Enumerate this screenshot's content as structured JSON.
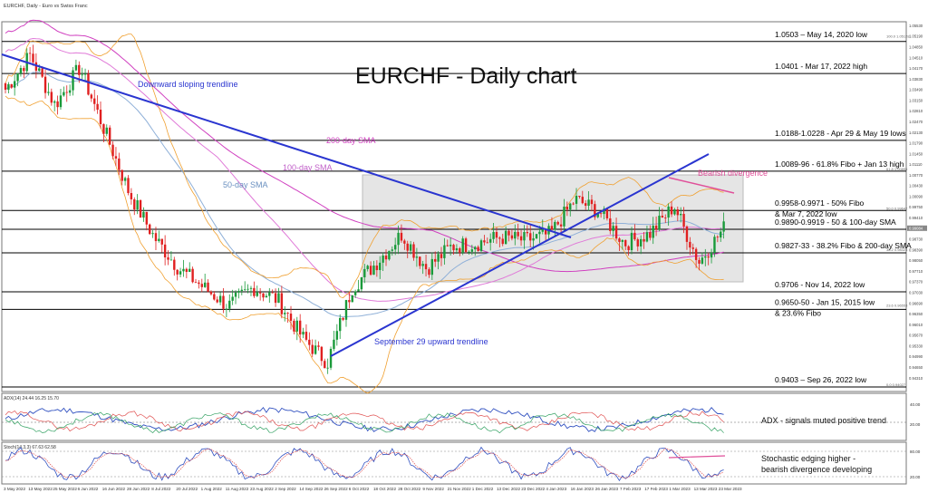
{
  "header": {
    "symbol_caption": "EURCHF, Daily - Euro vs Swiss Franc",
    "main_title": "EURCHF - Daily chart"
  },
  "colors": {
    "background": "#ffffff",
    "candle_up": "#1a9a3a",
    "candle_down": "#e02020",
    "trendline": "#2a35d0",
    "sma_200": "#d040c0",
    "sma_100": "#e07ad8",
    "sma_50": "#8fb0d8",
    "bollinger": "#f0a030",
    "range_box": "#d0d0d0",
    "divergence": "#e0509a",
    "adx_line": "#3050c0",
    "plus_di": "#e05050",
    "minus_di": "#30a060",
    "stoch_k": "#3050c0",
    "stoch_d": "#e05050",
    "level_line": "#000000",
    "annotation_text": "#000000"
  },
  "levels": [
    {
      "price": 1.0503,
      "label": "1.0503 – May 14, 2020 low"
    },
    {
      "price": 1.0401,
      "label": "1.0401 - Mar 17, 2022 high"
    },
    {
      "price": 1.0188,
      "label": "1.0188-1.0228 - Apr 29 & May 19 lows"
    },
    {
      "price": 1.009,
      "label": "1.0089-96 - 61.8% Fibo + Jan 13 high"
    },
    {
      "price": 0.9965,
      "label": "0.9958-0.9971 - 50% Fibo",
      "label2": "& Mar 7, 2022 low"
    },
    {
      "price": 0.9905,
      "label": "0.9890-0.9919 - 50 & 100-day SMA"
    },
    {
      "price": 0.983,
      "label": "0.9827-33 - 38.2% Fibo & 200-day SMA"
    },
    {
      "price": 0.9706,
      "label": "0.9706 - Nov 14, 2022 low"
    },
    {
      "price": 0.965,
      "label": "0.9650-50 - Jan 15, 2015 low",
      "label2": "& 23.6% Fibo"
    },
    {
      "price": 0.9403,
      "label": "0.9403 – Sep 26, 2022 low"
    }
  ],
  "annotations": {
    "downward_trendline": "Downward sloping trendline",
    "upward_trendline": "September 29 upward trendline",
    "sma_200": "200-day SMA",
    "sma_100": "100-day SMA",
    "sma_50": "50-day SMA",
    "bearish_divergence": "Bearish divergence"
  },
  "adx_panel": {
    "caption": "ADX(14) 24.44 16.25 15.70",
    "note": "ADX - signals muted positive trend",
    "axis_labels": [
      "40.00",
      "20.00"
    ]
  },
  "stoch_panel": {
    "caption": "Stoch(14,3,3) 67.63 62.58",
    "note1": "Stochastic edging higher -",
    "note2": "bearish divergence developing",
    "axis_labels": [
      "80.00",
      "20.00"
    ]
  },
  "price_axis": {
    "ticks": [
      "1.05530",
      "1.05190",
      "1.04850",
      "1.04510",
      "1.04170",
      "1.03830",
      "1.03490",
      "1.03150",
      "1.02810",
      "1.02470",
      "1.02130",
      "1.01790",
      "1.01450",
      "1.01110",
      "1.00770",
      "1.00430",
      "1.00090",
      "0.99750",
      "0.99410",
      "0.99070",
      "0.98730",
      "0.98390",
      "0.98050",
      "0.97710",
      "0.97370",
      "0.97030",
      "0.96690",
      "0.96350",
      "0.96010",
      "0.95670",
      "0.95330",
      "0.94990",
      "0.94650",
      "0.94310"
    ],
    "current_price": "0.99084"
  },
  "fibo_labels": [
    "100.0 1.05128",
    "61.8 1.00896",
    "50.0 0.99642",
    "38.2 0.98323",
    "23.6 0.96553",
    "0.0 0.94027"
  ],
  "date_axis": [
    "3 May 2022",
    "13 May 2022",
    "25 May 2022",
    "6 Jun 2022",
    "16 Jun 2022",
    "28 Jun 2022",
    "8 Jul 2022",
    "20 Jul 2022",
    "1 Aug 2022",
    "11 Aug 2022",
    "23 Aug 2022",
    "2 Sep 2022",
    "14 Sep 2022",
    "26 Sep 2022",
    "6 Oct 2022",
    "18 Oct 2022",
    "28 Oct 2022",
    "9 Nov 2022",
    "21 Nov 2022",
    "1 Dec 2022",
    "13 Dec 2022",
    "23 Dec 2022",
    "4 Jan 2023",
    "16 Jan 2023",
    "26 Jan 2023",
    "7 Feb 2023",
    "17 Feb 2023",
    "1 Mar 2023",
    "13 Mar 2023",
    "23 Mar 2023"
  ],
  "chart_data": {
    "type": "candlestick",
    "title": "EURCHF - Daily chart",
    "subtitle": "EURCHF, Daily - Euro vs Swiss Franc",
    "ylim": [
      0.94,
      1.056
    ],
    "price_path_x": [
      "3 May 2022",
      "13 May 2022",
      "25 May 2022",
      "6 Jun 2022",
      "16 Jun 2022",
      "28 Jun 2022",
      "8 Jul 2022",
      "20 Jul 2022",
      "1 Aug 2022",
      "11 Aug 2022",
      "23 Aug 2022",
      "2 Sep 2022",
      "14 Sep 2022",
      "26 Sep 2022",
      "6 Oct 2022",
      "18 Oct 2022",
      "28 Oct 2022",
      "9 Nov 2022",
      "21 Nov 2022",
      "1 Dec 2022",
      "13 Dec 2022",
      "23 Dec 2022",
      "4 Jan 2023",
      "16 Jan 2023",
      "26 Jan 2023",
      "7 Feb 2023",
      "17 Feb 2023",
      "1 Mar 2023",
      "13 Mar 2023",
      "23 Mar 2023"
    ],
    "price_path_close": [
      1.035,
      1.046,
      1.03,
      1.042,
      1.022,
      1.002,
      0.988,
      0.978,
      0.972,
      0.966,
      0.972,
      0.968,
      0.956,
      0.948,
      0.972,
      0.98,
      0.989,
      0.978,
      0.985,
      0.986,
      0.988,
      0.987,
      0.989,
      1.0,
      0.996,
      0.986,
      0.989,
      0.998,
      0.98,
      0.9908
    ],
    "grid": false
  }
}
